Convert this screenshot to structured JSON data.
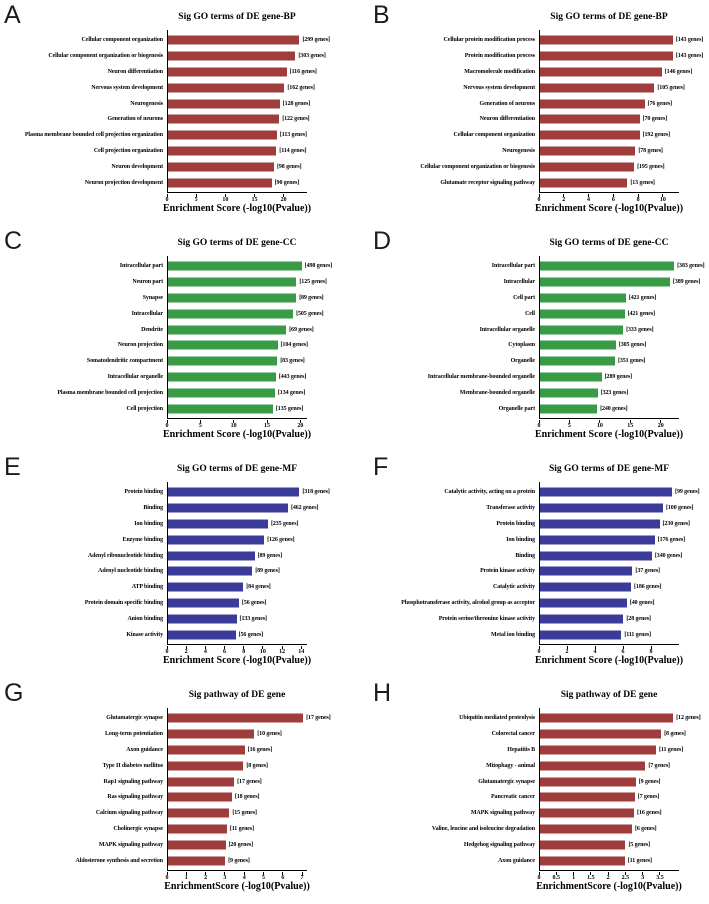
{
  "accent_colors": {
    "bp_pathway_red": "#9e3d3b",
    "cc_green": "#3a9b47",
    "mf_blue": "#3b3c99",
    "axis_black": "#000000"
  },
  "chart_data": [
    {
      "type": "bar",
      "panel_letter": "A",
      "title": "Sig GO terms of DE gene-BP",
      "xlabel": "Enrichment Score (-log10(Pvalue))",
      "color": "#9e3d3b",
      "xticks": [
        0,
        5,
        10,
        15,
        20
      ],
      "xlim": [
        0,
        24
      ],
      "grid": false,
      "categories": [
        "Cellular component organization",
        "Cellular component organization or biogenesis",
        "Neuron differentiation",
        "Nervous system development",
        "Neurogenesis",
        "Generation of neurons",
        "Plasma membrane bounded cell projection organization",
        "Cell projection organization",
        "Neuron development",
        "Neuron projection development"
      ],
      "values": [
        22.7,
        22.0,
        20.5,
        20.1,
        19.3,
        19.2,
        18.8,
        18.7,
        18.3,
        17.9
      ],
      "gene_counts": [
        299,
        303,
        116,
        162,
        128,
        122,
        113,
        114,
        98,
        90
      ],
      "bar_labels": [
        "[299 genes]",
        "[303 genes]",
        "[116 genes]",
        "[162 genes]",
        "[128 genes]",
        "[122 genes]",
        "[113 genes]",
        "[114 genes]",
        "[98 genes]",
        "[90 genes]"
      ]
    },
    {
      "type": "bar",
      "panel_letter": "B",
      "title": "Sig GO terms of DE gene-BP",
      "xlabel": "Enrichment Score (-log10(Pvalue))",
      "color": "#9e3d3b",
      "xticks": [
        0,
        2,
        4,
        6,
        8,
        10
      ],
      "xlim": [
        0,
        11.3
      ],
      "grid": false,
      "categories": [
        "Cellular protein modification process",
        "Protein modification process",
        "Macromolecule modification",
        "Nervous system development",
        "Generation of neurons",
        "Neuron differentiation",
        "Cellular component organization",
        "Neurogenesis",
        "Cellular component organization or biogenesis",
        "Glutamate receptor signaling pathway"
      ],
      "values": [
        10.8,
        10.8,
        9.9,
        9.3,
        8.5,
        8.1,
        8.1,
        7.75,
        7.65,
        7.1
      ],
      "gene_counts": [
        143,
        143,
        146,
        105,
        76,
        70,
        192,
        78,
        195,
        13
      ],
      "bar_labels": [
        "[143 genes]",
        "[143 genes]",
        "[146 genes]",
        "[105 genes]",
        "[76 genes]",
        "[70 genes]",
        "[192 genes]",
        "[78 genes]",
        "[195 genes]",
        "[13 genes]"
      ]
    },
    {
      "type": "bar",
      "panel_letter": "C",
      "title": "Sig GO terms of DE gene-CC",
      "xlabel": "Enrichment Score (-log10(Pvalue))",
      "color": "#3a9b47",
      "xticks": [
        0,
        5,
        10,
        15,
        20
      ],
      "xlim": [
        0,
        21
      ],
      "grid": false,
      "categories": [
        "Intracellular part",
        "Neuron part",
        "Synapse",
        "Intracellular",
        "Dendrite",
        "Neuron projection",
        "Somatodendritic compartment",
        "Intracellular organelle",
        "Plasma membrane bounded cell projection",
        "Cell projection"
      ],
      "values": [
        20.2,
        19.4,
        19.35,
        18.9,
        17.85,
        16.55,
        16.5,
        16.3,
        16.15,
        15.85
      ],
      "gene_counts": [
        498,
        125,
        89,
        505,
        69,
        104,
        83,
        443,
        134,
        135
      ],
      "bar_labels": [
        "[498 genes]",
        "[125 genes]",
        "[89 genes]",
        "[505 genes]",
        "[69 genes]",
        "[104 genes]",
        "[83 genes]",
        "[443 genes]",
        "[134 genes]",
        "[135 genes]"
      ]
    },
    {
      "type": "bar",
      "panel_letter": "D",
      "title": "Sig GO terms of DE gene-CC",
      "xlabel": "Enrichment Score (-log10(Pvalue))",
      "color": "#3a9b47",
      "xticks": [
        0,
        5,
        10,
        15,
        20
      ],
      "xlim": [
        0,
        23
      ],
      "grid": false,
      "categories": [
        "Intracellular part",
        "Intracellular",
        "Cell part",
        "Cell",
        "Intracellular organelle",
        "Cytoplasm",
        "Organelle",
        "Intracellular membrane-bounded organelle",
        "Membrane-bounded organelle",
        "Organelle part"
      ],
      "values": [
        22.2,
        21.5,
        14.2,
        14.0,
        13.75,
        12.55,
        12.4,
        10.2,
        9.55,
        9.45
      ],
      "gene_counts": [
        383,
        389,
        421,
        421,
        333,
        305,
        351,
        289,
        323,
        240
      ],
      "bar_labels": [
        "[383 genes]",
        "[389 genes]",
        "[421 genes]",
        "[421 genes]",
        "[333 genes]",
        "[305 genes]",
        "[351 genes]",
        "[289 genes]",
        "[323 genes]",
        "[240 genes]"
      ]
    },
    {
      "type": "bar",
      "panel_letter": "E",
      "title": "Sig GO terms of DE gene-MF",
      "xlabel": "Enrichment Score (-log10(Pvalue))",
      "color": "#3b3c99",
      "xticks": [
        0,
        2,
        4,
        6,
        8,
        10,
        12,
        14
      ],
      "xlim": [
        0,
        14.6
      ],
      "grid": false,
      "categories": [
        "Protein binding",
        "Binding",
        "Ion binding",
        "Enzyme binding",
        "Adenyl ribonucleotide binding",
        "Adenyl nucleotide binding",
        "ATP binding",
        "Protein domain specific binding",
        "Anion binding",
        "Kinase activity"
      ],
      "values": [
        13.8,
        12.6,
        10.5,
        10.1,
        9.1,
        8.85,
        7.9,
        7.45,
        7.2,
        7.1
      ],
      "gene_counts": [
        318,
        462,
        235,
        126,
        89,
        89,
        84,
        56,
        133,
        56
      ],
      "bar_labels": [
        "[318 genes]",
        "[462 genes]",
        "[235 genes]",
        "[126 genes]",
        "[89 genes]",
        "[89 genes]",
        "[84 genes]",
        "[56 genes]",
        "[133 genes]",
        "[56 genes]"
      ]
    },
    {
      "type": "bar",
      "panel_letter": "F",
      "title": "Sig GO terms of DE gene-MF",
      "xlabel": "Enrichment Score (-log10(Pvalue))",
      "color": "#3b3c99",
      "xticks": [
        0,
        2,
        4,
        6,
        8
      ],
      "xlim": [
        0,
        10
      ],
      "grid": false,
      "categories": [
        "Catalytic activity, acting on a protein",
        "Transferase activity",
        "Protein binding",
        "Ion binding",
        "Binding",
        "Protein kinase activity",
        "Catalytic activity",
        "Phosphotransferase activity, alcohol group as acceptor",
        "Protein serine/threonine kinase activity",
        "Metal ion binding"
      ],
      "values": [
        9.5,
        8.85,
        8.6,
        8.25,
        8.05,
        6.65,
        6.55,
        6.25,
        6.0,
        5.85
      ],
      "gene_counts": [
        99,
        100,
        230,
        176,
        340,
        37,
        186,
        40,
        28,
        111
      ],
      "bar_labels": [
        "[99 genes]",
        "[100 genes]",
        "[230 genes]",
        "[176 genes]",
        "[340 genes]",
        "[37 genes]",
        "[186 genes]",
        "[40 genes]",
        "[28 genes]",
        "[111 genes]"
      ]
    },
    {
      "type": "bar",
      "panel_letter": "G",
      "title": "Sig pathway of DE gene",
      "xlabel": "EnrichmentScore (-log10(Pvalue))",
      "color": "#9e3d3b",
      "xticks": [
        0,
        1,
        2,
        3,
        4,
        5,
        6,
        7
      ],
      "xlim": [
        0,
        7.25
      ],
      "grid": false,
      "categories": [
        "Glutamatergic synapse",
        "Long-term potentiation",
        "Axon guidance",
        "Type II diabetes mellitus",
        "Rap1 signaling pathway",
        "Ras signaling pathway",
        "Calcium signaling pathway",
        "Cholinergic synapse",
        "MAPK signaling pathway",
        "Aldosterone synthesis and secretion"
      ],
      "values": [
        7.05,
        4.5,
        4.0,
        3.93,
        3.45,
        3.33,
        3.2,
        3.07,
        3.0,
        2.98
      ],
      "gene_counts": [
        17,
        10,
        16,
        8,
        17,
        18,
        15,
        11,
        20,
        9
      ],
      "bar_labels": [
        "[17 genes]",
        "[10 genes]",
        "[16 genes]",
        "[8 genes]",
        "[17 genes]",
        "[18 genes]",
        "[15 genes]",
        "[11 genes]",
        "[20 genes]",
        "[9 genes]"
      ]
    },
    {
      "type": "bar",
      "panel_letter": "H",
      "title": "Sig pathway of DE gene",
      "xlabel": "EnrichmentScore (-log10(Pvalue))",
      "color": "#9e3d3b",
      "xticks": [
        0,
        0.5,
        1,
        1.5,
        2,
        2.5,
        3,
        3.5
      ],
      "xlim": [
        0,
        4.05
      ],
      "grid": false,
      "categories": [
        "Ubiquitin mediated proteolysis",
        "Colorectal cancer",
        "Hepatitis B",
        "Mitophagy - animal",
        "Glutamatergic synapse",
        "Pancreatic cancer",
        "MAPK signaling pathway",
        "Valine, leucine and isoleucine degradation",
        "Hedgehog signaling pathway",
        "Axon guidance"
      ],
      "values": [
        3.88,
        3.53,
        3.38,
        3.07,
        2.79,
        2.76,
        2.74,
        2.68,
        2.49,
        2.47
      ],
      "gene_counts": [
        12,
        8,
        11,
        7,
        9,
        7,
        16,
        6,
        5,
        11
      ],
      "bar_labels": [
        "[12 genes]",
        "[8 genes]",
        "[11 genes]",
        "[7 genes]",
        "[9 genes]",
        "[7 genes]",
        "[16 genes]",
        "[6 genes]",
        "[5 genes]",
        "[11 genes]"
      ]
    }
  ]
}
